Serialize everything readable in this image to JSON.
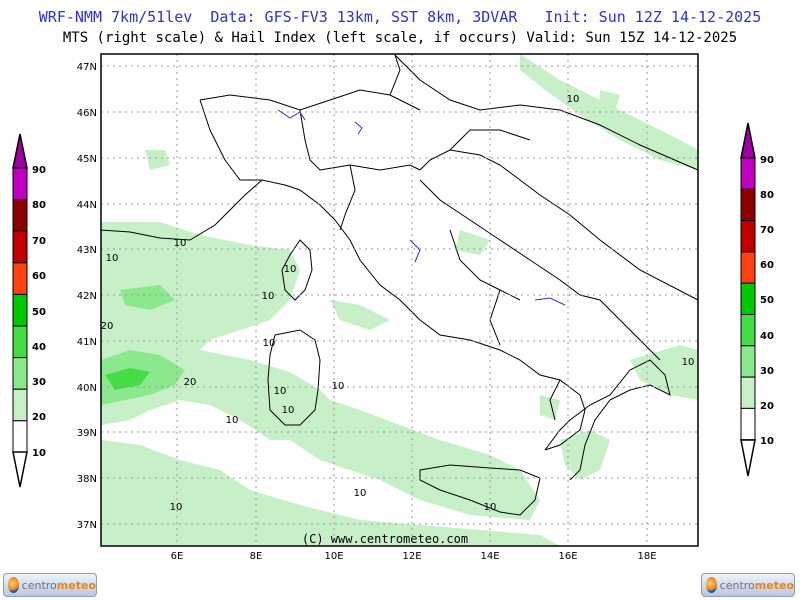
{
  "header": {
    "line1": "WRF-NMM 7km/51lev  Data: GFS-FV3 13km, SST 8km, 3DVAR   Init: Sun 12Z 14-12-2025",
    "line2": "MTS (right scale) & Hail Index (left scale, if occurs) Valid: Sun 15Z 14-12-2025"
  },
  "map": {
    "lat_labels": [
      "47N",
      "46N",
      "45N",
      "44N",
      "43N",
      "42N",
      "41N",
      "40N",
      "39N",
      "38N",
      "37N"
    ],
    "lon_labels": [
      "6E",
      "8E",
      "10E",
      "12E",
      "14E",
      "16E",
      "18E"
    ],
    "copyright": "(C) www.centrometeo.com",
    "contour_labels": [
      "10",
      "10",
      "10",
      "10",
      "10",
      "20",
      "10",
      "20",
      "10",
      "10",
      "10",
      "10",
      "10",
      "10",
      "10",
      "10",
      "10",
      "10",
      "10",
      "10"
    ]
  },
  "left_scale": {
    "labels": [
      "90",
      "80",
      "70",
      "60",
      "50",
      "40",
      "30",
      "20",
      "10"
    ],
    "colors": [
      "#c000c0",
      "#8b0000",
      "#c00000",
      "#ff4010",
      "#00c800",
      "#46dc46",
      "#8ce88c",
      "#c8f0c8",
      "#ffffff"
    ]
  },
  "right_scale": {
    "labels": [
      "90",
      "80",
      "70",
      "60",
      "50",
      "40",
      "30",
      "20",
      "10"
    ],
    "colors": [
      "#c000c0",
      "#8b0000",
      "#c00000",
      "#ff4010",
      "#00c800",
      "#46dc46",
      "#8ce88c",
      "#c8f0c8",
      "#ffffff"
    ]
  },
  "logos": {
    "left_a": "centro",
    "left_b": "meteo",
    "right_a": "centro",
    "right_b": "meteo"
  }
}
